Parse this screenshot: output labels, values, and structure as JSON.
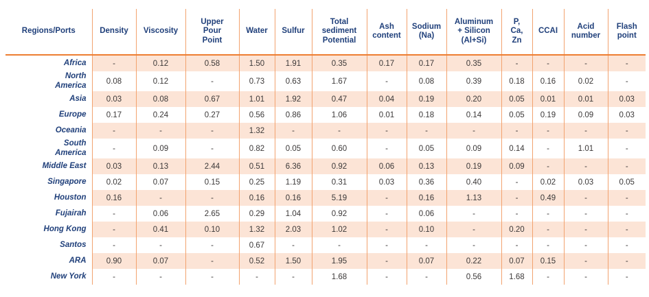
{
  "colors": {
    "header_text": "#1f3f7a",
    "region_text": "#1f3f7a",
    "cell_text": "#3b3838",
    "row_stripe": "#fce4d6",
    "grid_line": "#f2a26e",
    "header_rule": "#ed7d31",
    "page_bg": "#ffffff"
  },
  "chart_data": {
    "type": "table",
    "title": "",
    "empty_marker": "-",
    "columns": [
      "Regions/Ports",
      "Density",
      "Viscosity",
      "Upper\nPour\nPoint",
      "Water",
      "Sulfur",
      "Total\nsediment\nPotential",
      "Ash\ncontent",
      "Sodium\n(Na)",
      "Aluminum\n+ Silicon\n(Al+Si)",
      "P,\nCa,\nZn",
      "CCAI",
      "Acid\nnumber",
      "Flash\npoint"
    ],
    "rows": [
      {
        "region": "Africa",
        "values": [
          "-",
          "0.12",
          "0.58",
          "1.50",
          "1.91",
          "0.35",
          "0.17",
          "0.17",
          "0.35",
          "-",
          "-",
          "-",
          "-"
        ]
      },
      {
        "region": "North\nAmerica",
        "values": [
          "0.08",
          "0.12",
          "-",
          "0.73",
          "0.63",
          "1.67",
          "-",
          "0.08",
          "0.39",
          "0.18",
          "0.16",
          "0.02",
          "-"
        ]
      },
      {
        "region": "Asia",
        "values": [
          "0.03",
          "0.08",
          "0.67",
          "1.01",
          "1.92",
          "0.47",
          "0.04",
          "0.19",
          "0.20",
          "0.05",
          "0.01",
          "0.01",
          "0.03"
        ]
      },
      {
        "region": "Europe",
        "values": [
          "0.17",
          "0.24",
          "0.27",
          "0.56",
          "0.86",
          "1.06",
          "0.01",
          "0.18",
          "0.14",
          "0.05",
          "0.19",
          "0.09",
          "0.03"
        ]
      },
      {
        "region": "Oceania",
        "values": [
          "-",
          "-",
          "-",
          "1.32",
          "-",
          "-",
          "-",
          "-",
          "-",
          "-",
          "-",
          "-",
          "-"
        ]
      },
      {
        "region": "South\nAmerica",
        "values": [
          "-",
          "0.09",
          "-",
          "0.82",
          "0.05",
          "0.60",
          "-",
          "0.05",
          "0.09",
          "0.14",
          "-",
          "1.01",
          "-"
        ]
      },
      {
        "region": "Middle East",
        "values": [
          "0.03",
          "0.13",
          "2.44",
          "0.51",
          "6.36",
          "0.92",
          "0.06",
          "0.13",
          "0.19",
          "0.09",
          "-",
          "-",
          "-"
        ]
      },
      {
        "region": "Singapore",
        "values": [
          "0.02",
          "0.07",
          "0.15",
          "0.25",
          "1.19",
          "0.31",
          "0.03",
          "0.36",
          "0.40",
          "-",
          "0.02",
          "0.03",
          "0.05"
        ]
      },
      {
        "region": "Houston",
        "values": [
          "0.16",
          "-",
          "-",
          "0.16",
          "0.16",
          "5.19",
          "-",
          "0.16",
          "1.13",
          "-",
          "0.49",
          "-",
          "-"
        ]
      },
      {
        "region": "Fujairah",
        "values": [
          "-",
          "0.06",
          "2.65",
          "0.29",
          "1.04",
          "0.92",
          "-",
          "0.06",
          "-",
          "-",
          "-",
          "-",
          "-"
        ]
      },
      {
        "region": "Hong Kong",
        "values": [
          "-",
          "0.41",
          "0.10",
          "1.32",
          "2.03",
          "1.02",
          "-",
          "0.10",
          "-",
          "0.20",
          "-",
          "-",
          "-"
        ]
      },
      {
        "region": "Santos",
        "values": [
          "-",
          "-",
          "-",
          "0.67",
          "-",
          "-",
          "-",
          "-",
          "-",
          "-",
          "-",
          "-",
          "-"
        ]
      },
      {
        "region": "ARA",
        "values": [
          "0.90",
          "0.07",
          "-",
          "0.52",
          "1.50",
          "1.95",
          "-",
          "0.07",
          "0.22",
          "0.07",
          "0.15",
          "-",
          "-"
        ]
      },
      {
        "region": "New York",
        "values": [
          "-",
          "-",
          "-",
          "-",
          "-",
          "1.68",
          "-",
          "-",
          "0.56",
          "1.68",
          "-",
          "-",
          "-"
        ]
      }
    ]
  }
}
